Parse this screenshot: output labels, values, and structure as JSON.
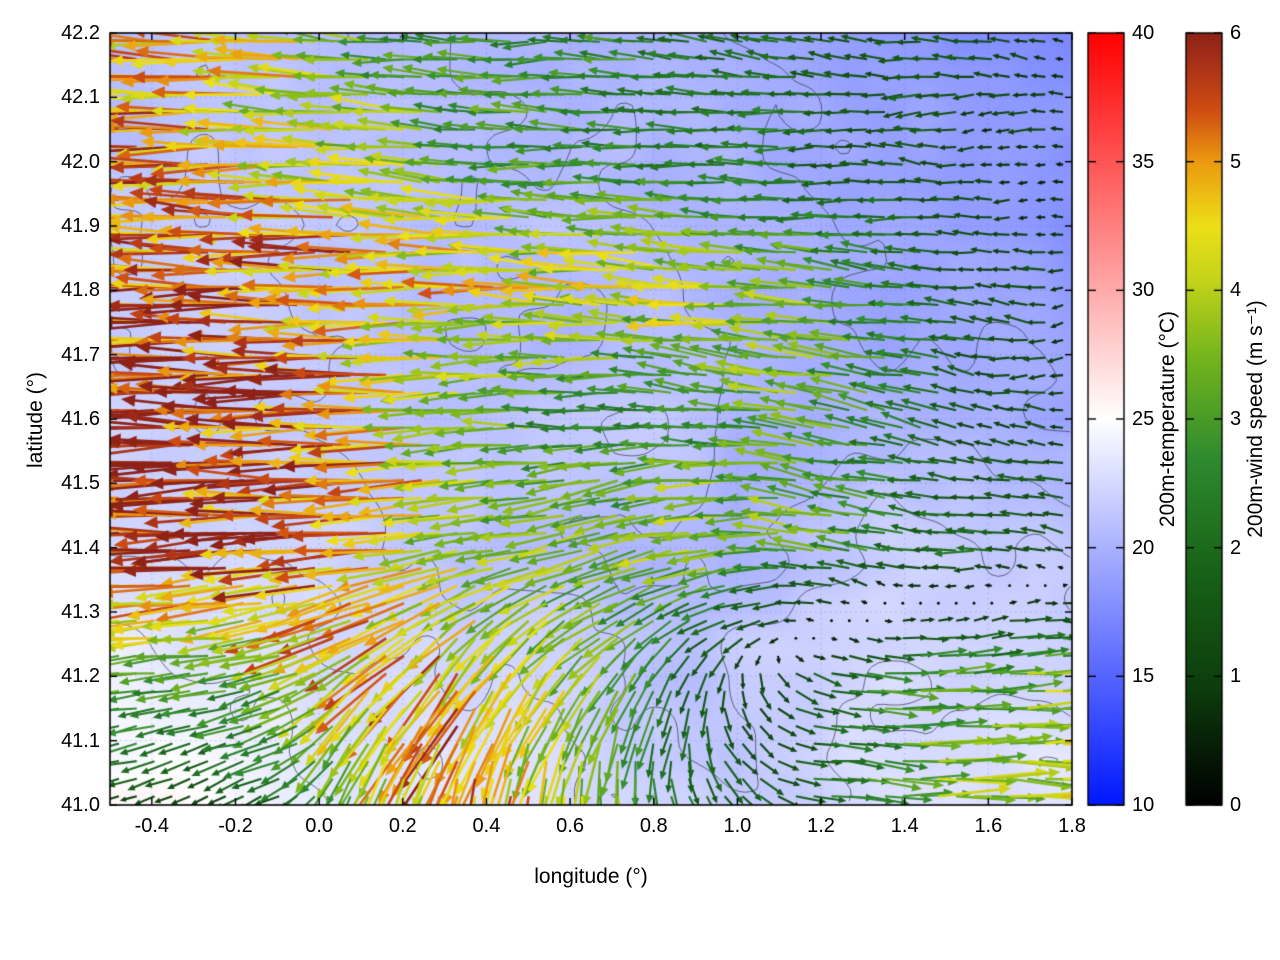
{
  "chart_data": {
    "type": "heatmap",
    "subtype": "vector-field-over-heatmap-with-contours",
    "title": "",
    "xlabel": "longitude (°)",
    "ylabel": "latitude (°)",
    "xlim": [
      -0.5,
      1.8
    ],
    "ylim": [
      41.0,
      42.2
    ],
    "grid": "dotted",
    "x_tick_values": [
      -0.4,
      -0.2,
      0.0,
      0.2,
      0.4,
      0.6,
      0.8,
      1.0,
      1.2,
      1.4,
      1.6,
      1.8
    ],
    "x_tick_labels": [
      "-0.4",
      "-0.2",
      "0.0",
      "0.2",
      "0.4",
      "0.6",
      "0.8",
      "1.0",
      "1.2",
      "1.4",
      "1.6",
      "1.8"
    ],
    "y_tick_values": [
      41.0,
      41.1,
      41.2,
      41.3,
      41.4,
      41.5,
      41.6,
      41.7,
      41.8,
      41.9,
      42.0,
      42.1,
      42.2
    ],
    "y_tick_labels": [
      "41.0",
      "41.1",
      "41.2",
      "41.3",
      "41.4",
      "41.5",
      "41.6",
      "41.7",
      "41.8",
      "41.9",
      "42.0",
      "42.1",
      "42.2"
    ],
    "colorbars": [
      {
        "name": "temperature",
        "label": "200m-temperature (°C)",
        "min": 10,
        "max": 40,
        "tick_values": [
          10,
          15,
          20,
          25,
          30,
          35,
          40
        ],
        "tick_labels": [
          "10",
          "15",
          "20",
          "25",
          "30",
          "35",
          "40"
        ],
        "stops": [
          [
            10,
            "#0018ff"
          ],
          [
            25,
            "#ffffff"
          ],
          [
            40,
            "#ff0000"
          ]
        ]
      },
      {
        "name": "wind-speed",
        "label": "200m-wind speed (m s⁻¹)",
        "min": 0,
        "max": 6,
        "tick_values": [
          0,
          1,
          2,
          3,
          4,
          5,
          6
        ],
        "tick_labels": [
          "0",
          "1",
          "2",
          "3",
          "4",
          "5",
          "6"
        ],
        "stops": [
          [
            0,
            "#000000"
          ],
          [
            0.9,
            "#0d3c0d"
          ],
          [
            1.8,
            "#176117"
          ],
          [
            2.7,
            "#2f8b2f"
          ],
          [
            3.5,
            "#76b61c"
          ],
          [
            4.1,
            "#c6d41a"
          ],
          [
            4.5,
            "#ecdf17"
          ],
          [
            5.0,
            "#eb9a10"
          ],
          [
            5.4,
            "#cf4d12"
          ],
          [
            5.8,
            "#a52e18"
          ],
          [
            6.0,
            "#8e2217"
          ]
        ]
      }
    ],
    "contours": {
      "levels": [
        19.5,
        20.5,
        21.5,
        22.5,
        23.5
      ],
      "color": "rgba(55,55,65,0.7)"
    },
    "temperature_field": {
      "units": "°C",
      "lat": [
        42.2,
        42.0,
        41.8,
        41.6,
        41.4,
        41.2,
        41.0
      ],
      "lon_range": [
        -0.5,
        1.8
      ],
      "values": [
        [
          21.0,
          20.8,
          20.6,
          20.4,
          20.2,
          20.0,
          19.8,
          19.4,
          19.0,
          18.4,
          18.0,
          17.8
        ],
        [
          21.4,
          21.2,
          21.0,
          20.8,
          20.6,
          20.2,
          20.0,
          19.6,
          19.0,
          18.6,
          18.2,
          18.0
        ],
        [
          21.8,
          21.6,
          21.2,
          21.0,
          21.0,
          20.8,
          20.6,
          20.2,
          19.6,
          19.2,
          19.0,
          18.8
        ],
        [
          22.2,
          22.0,
          21.8,
          21.6,
          21.2,
          21.0,
          20.8,
          20.4,
          20.2,
          19.8,
          19.6,
          19.4
        ],
        [
          22.6,
          22.4,
          22.2,
          21.8,
          21.6,
          21.2,
          21.0,
          20.8,
          21.0,
          21.4,
          21.6,
          21.8
        ],
        [
          23.6,
          23.2,
          23.4,
          22.8,
          22.2,
          21.8,
          21.4,
          21.2,
          21.6,
          22.0,
          22.4,
          22.6
        ],
        [
          24.8,
          25.2,
          24.2,
          23.2,
          22.6,
          22.2,
          21.8,
          21.8,
          22.2,
          22.6,
          23.0,
          23.2
        ]
      ]
    },
    "wind_field": {
      "units": "m s⁻¹",
      "lat": [
        42.2,
        42.0,
        41.8,
        41.6,
        41.4,
        41.2,
        41.0
      ],
      "lon_range": [
        -0.5,
        1.8
      ],
      "u": [
        [
          -4.2,
          -4.5,
          -4.0,
          -3.2,
          -2.8,
          -2.6,
          -2.4,
          -2.2,
          -1.8,
          -1.5,
          -1.1,
          -0.7
        ],
        [
          -5.2,
          -5.0,
          -4.4,
          -3.8,
          -3.2,
          -2.8,
          -2.6,
          -2.3,
          -1.9,
          -1.5,
          -1.0,
          -0.5
        ],
        [
          -5.8,
          -5.7,
          -5.4,
          -5.0,
          -4.6,
          -4.3,
          -4.2,
          -4.0,
          -3.6,
          -2.6,
          -1.4,
          -0.8
        ],
        [
          -6.0,
          -5.9,
          -5.6,
          -4.9,
          -3.6,
          -2.8,
          -2.3,
          -2.6,
          -3.2,
          -2.4,
          -1.5,
          -0.9
        ],
        [
          -6.0,
          -5.9,
          -5.6,
          -5.0,
          -4.2,
          -3.6,
          -3.4,
          -3.8,
          -3.2,
          -2.4,
          -1.8,
          -1.4
        ],
        [
          -3.2,
          -2.8,
          -3.4,
          -3.4,
          -3.0,
          -2.6,
          -1.8,
          -0.4,
          1.6,
          2.8,
          3.3,
          3.6
        ],
        [
          -1.4,
          -1.0,
          -1.4,
          -1.2,
          -0.8,
          -0.2,
          0.6,
          1.4,
          2.4,
          3.2,
          3.6,
          3.9
        ]
      ],
      "v": [
        [
          0.3,
          0.2,
          0.2,
          0.3,
          0.2,
          0.1,
          0.2,
          0.1,
          0.1,
          0.1,
          0.0,
          0.0
        ],
        [
          0.1,
          0.1,
          0.2,
          0.1,
          0.2,
          0.1,
          0.1,
          0.2,
          0.1,
          0.0,
          0.1,
          0.0
        ],
        [
          0.0,
          0.1,
          0.0,
          0.1,
          0.0,
          0.2,
          0.3,
          0.2,
          0.4,
          0.3,
          0.1,
          0.0
        ],
        [
          -0.1,
          0.0,
          0.1,
          0.0,
          -0.2,
          -0.1,
          0.0,
          0.3,
          0.8,
          0.6,
          0.2,
          0.1
        ],
        [
          -0.2,
          -0.1,
          -0.2,
          -0.4,
          -0.6,
          -0.8,
          -1.0,
          -0.8,
          0.4,
          0.4,
          0.2,
          0.1
        ],
        [
          -0.3,
          -0.6,
          -1.2,
          -3.2,
          -4.2,
          -3.6,
          -2.4,
          -1.2,
          -0.4,
          -0.1,
          0.0,
          0.1
        ],
        [
          -0.2,
          -0.4,
          -0.8,
          -3.2,
          -5.2,
          -4.4,
          -2.8,
          -1.4,
          -0.4,
          -0.1,
          0.0,
          0.0
        ]
      ]
    }
  }
}
